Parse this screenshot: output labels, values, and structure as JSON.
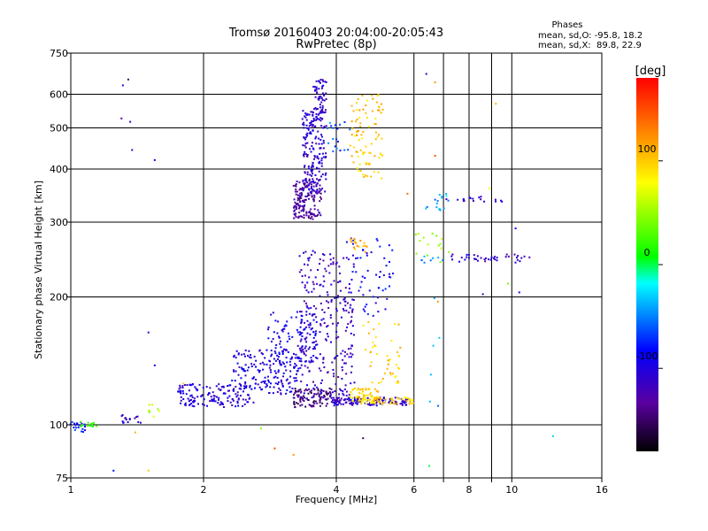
{
  "chart_data": {
    "type": "scatter",
    "title": "Tromsø 20160403 20:04:00-20:05:43",
    "subtitle": "RwPretec (8p)",
    "xlabel": "Frequency [MHz]",
    "ylabel": "Stationary phase Virtual Height [km]",
    "x_scale": "log",
    "y_scale": "log",
    "xlim": [
      1,
      16
    ],
    "ylim": [
      75,
      750
    ],
    "x_ticks": [
      1,
      2,
      4,
      6,
      7,
      8,
      9,
      10,
      16
    ],
    "x_tick_labels": [
      "1",
      "2",
      "4",
      "6",
      "",
      "8",
      "",
      "10",
      "16"
    ],
    "y_ticks": [
      75,
      100,
      200,
      300,
      400,
      500,
      600,
      750
    ],
    "y_tick_labels": [
      "75",
      "100",
      "200",
      "300",
      "400",
      "500",
      "600",
      "750"
    ],
    "grid": true,
    "stats": {
      "heading": "Phases",
      "line_o": "mean, sd,O: -95.8, 18.2",
      "line_x": "mean, sd,X:  89.8, 22.9"
    },
    "colorbar": {
      "label": "[deg]",
      "range": [
        -180,
        180
      ],
      "ticks": [
        100,
        0,
        -100
      ],
      "tick_labels": [
        "100",
        "0",
        "-100"
      ]
    },
    "clusters": [
      {
        "f": [
          0.99,
          1.08
        ],
        "h": [
          96,
          102
        ],
        "phase": -80,
        "n": 20
      },
      {
        "f": [
          1.05,
          1.15
        ],
        "h": [
          99,
          102
        ],
        "phase": 20,
        "n": 14
      },
      {
        "f": [
          1.3,
          1.45
        ],
        "h": [
          101,
          106
        ],
        "phase": -110,
        "n": 16
      },
      {
        "f": [
          1.45,
          1.6
        ],
        "h": [
          104,
          112
        ],
        "phase": 60,
        "n": 8
      },
      {
        "f": [
          1.75,
          2.6
        ],
        "h": [
          110,
          125
        ],
        "phase": -105,
        "n": 140
      },
      {
        "f": [
          2.3,
          3.3
        ],
        "h": [
          118,
          150
        ],
        "phase": -100,
        "n": 170
      },
      {
        "f": [
          2.8,
          3.6
        ],
        "h": [
          140,
          185
        ],
        "phase": -95,
        "n": 110
      },
      {
        "f": [
          3.2,
          3.9
        ],
        "h": [
          110,
          122
        ],
        "phase": -145,
        "n": 90
      },
      {
        "f": [
          3.3,
          4.4
        ],
        "h": [
          112,
          260
        ],
        "phase": -115,
        "n": 280
      },
      {
        "f": [
          3.9,
          5.8
        ],
        "h": [
          111,
          116
        ],
        "phase": -110,
        "n": 130
      },
      {
        "f": [
          4.3,
          5.0
        ],
        "h": [
          112,
          122
        ],
        "phase": 90,
        "n": 70
      },
      {
        "f": [
          4.8,
          6.0
        ],
        "h": [
          112,
          116
        ],
        "phase": 100,
        "n": 50
      },
      {
        "f": [
          4.6,
          5.6
        ],
        "h": [
          125,
          175
        ],
        "phase": 100,
        "n": 45
      },
      {
        "f": [
          4.2,
          5.4
        ],
        "h": [
          180,
          280
        ],
        "phase": -90,
        "n": 60
      },
      {
        "f": [
          4.3,
          4.7
        ],
        "h": [
          255,
          275
        ],
        "phase": 110,
        "n": 18
      },
      {
        "f": [
          3.2,
          3.7
        ],
        "h": [
          305,
          380
        ],
        "phase": -130,
        "n": 160
      },
      {
        "f": [
          3.35,
          3.8
        ],
        "h": [
          350,
          560
        ],
        "phase": -108,
        "n": 180
      },
      {
        "f": [
          3.55,
          3.8
        ],
        "h": [
          520,
          650
        ],
        "phase": -112,
        "n": 55
      },
      {
        "f": [
          4.3,
          5.1
        ],
        "h": [
          380,
          600
        ],
        "phase": 100,
        "n": 90
      },
      {
        "f": [
          3.8,
          4.3
        ],
        "h": [
          440,
          520
        ],
        "phase": -60,
        "n": 20
      },
      {
        "f": [
          6.3,
          7.2
        ],
        "h": [
          320,
          350
        ],
        "phase": -40,
        "n": 16
      },
      {
        "f": [
          7.0,
          9.5
        ],
        "h": [
          335,
          345
        ],
        "phase": -110,
        "n": 18
      },
      {
        "f": [
          6.0,
          7.0
        ],
        "h": [
          235,
          290
        ],
        "phase": 50,
        "n": 14
      },
      {
        "f": [
          7.3,
          9.3
        ],
        "h": [
          242,
          252
        ],
        "phase": -110,
        "n": 28
      },
      {
        "f": [
          9.5,
          11.0
        ],
        "h": [
          240,
          252
        ],
        "phase": -110,
        "n": 12
      },
      {
        "f": [
          6.2,
          7.0
        ],
        "h": [
          240,
          250
        ],
        "phase": -50,
        "n": 8
      },
      {
        "f": [
          6.5,
          6.9
        ],
        "h": [
          100,
          200
        ],
        "phase": -40,
        "n": 6
      },
      {
        "f": [
          1.3,
          1.4
        ],
        "h": [
          440,
          660
        ],
        "phase": -120,
        "n": 4
      }
    ],
    "points": [
      {
        "f": 6.4,
        "h": 670,
        "phase": -110
      },
      {
        "f": 6.7,
        "h": 640,
        "phase": 120
      },
      {
        "f": 9.2,
        "h": 570,
        "phase": 110
      },
      {
        "f": 1.35,
        "h": 650,
        "phase": -150
      },
      {
        "f": 1.55,
        "h": 420,
        "phase": -90
      },
      {
        "f": 1.5,
        "h": 165,
        "phase": -110
      },
      {
        "f": 1.8,
        "h": 125,
        "phase": 100
      },
      {
        "f": 2.7,
        "h": 98,
        "phase": 40
      },
      {
        "f": 4.6,
        "h": 93,
        "phase": -150
      },
      {
        "f": 6.5,
        "h": 80,
        "phase": 0
      },
      {
        "f": 12.4,
        "h": 94,
        "phase": -30
      },
      {
        "f": 1.25,
        "h": 78,
        "phase": -80
      },
      {
        "f": 1.5,
        "h": 78,
        "phase": 100
      },
      {
        "f": 2.9,
        "h": 88,
        "phase": 150
      },
      {
        "f": 3.2,
        "h": 85,
        "phase": 120
      },
      {
        "f": 1.4,
        "h": 96,
        "phase": 110
      },
      {
        "f": 1.55,
        "h": 138,
        "phase": -90
      },
      {
        "f": 8.6,
        "h": 203,
        "phase": -110
      },
      {
        "f": 10.4,
        "h": 205,
        "phase": -100
      },
      {
        "f": 6.8,
        "h": 195,
        "phase": 120
      },
      {
        "f": 10.2,
        "h": 290,
        "phase": -90
      },
      {
        "f": 8.9,
        "h": 360,
        "phase": 80
      },
      {
        "f": 6.7,
        "h": 430,
        "phase": 150
      },
      {
        "f": 5.8,
        "h": 350,
        "phase": 140
      },
      {
        "f": 7.2,
        "h": 255,
        "phase": 50
      },
      {
        "f": 9.8,
        "h": 215,
        "phase": 40
      }
    ]
  }
}
